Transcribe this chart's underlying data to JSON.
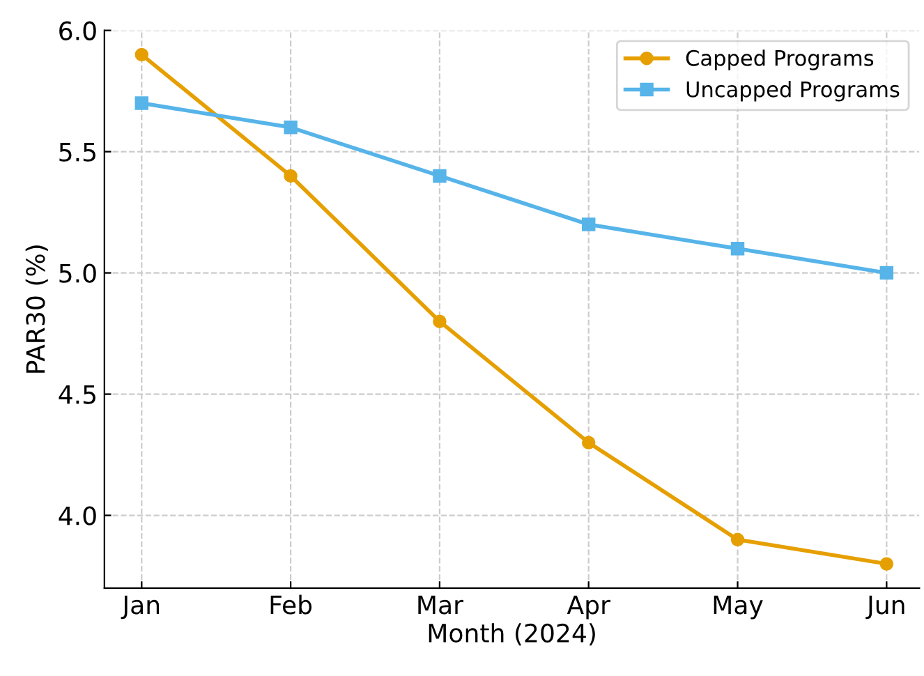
{
  "chart_data": {
    "type": "line",
    "xlabel": "Month (2024)",
    "ylabel": "PAR30 (%)",
    "categories": [
      "Jan",
      "Feb",
      "Mar",
      "Apr",
      "May",
      "Jun"
    ],
    "series": [
      {
        "name": "Capped Programs",
        "color": "#e69f00",
        "marker": "circle",
        "values": [
          5.9,
          5.4,
          4.8,
          4.3,
          3.9,
          3.8
        ]
      },
      {
        "name": "Uncapped Programs",
        "color": "#56b4e9",
        "marker": "square",
        "values": [
          5.7,
          5.6,
          5.4,
          5.2,
          5.1,
          5.0
        ]
      }
    ],
    "ylim": [
      3.7,
      6.0
    ],
    "yticks": [
      {
        "value": 4,
        "label": "4.0"
      },
      4.5,
      {
        "value": 5,
        "label": "5.0"
      },
      5.5,
      {
        "value": 6,
        "label": "6.0"
      }
    ],
    "grid": true,
    "legend": "top right",
    "line_style": "solid"
  }
}
